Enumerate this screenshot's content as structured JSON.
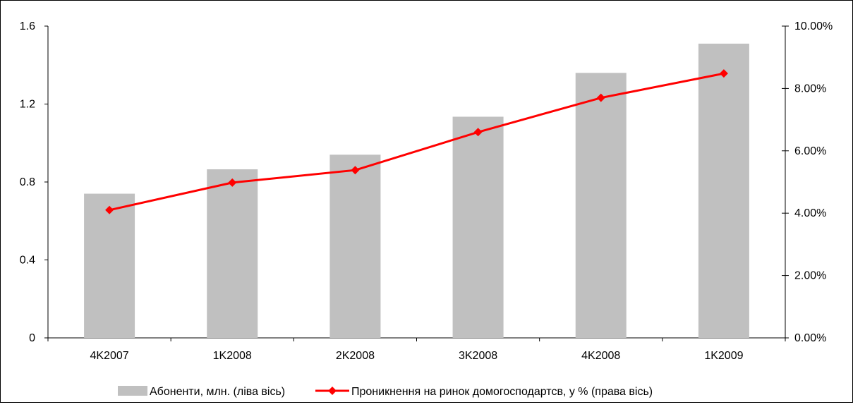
{
  "chart_data": {
    "type": "bar",
    "categories": [
      "4K2007",
      "1K2008",
      "2K2008",
      "3K2008",
      "4K2008",
      "1K2009"
    ],
    "series": [
      {
        "name": "Абоненти, млн. (ліва вісь)",
        "type": "bar",
        "axis": "left",
        "color": "#c0c0c0",
        "values": [
          0.74,
          0.865,
          0.94,
          1.135,
          1.36,
          1.51
        ]
      },
      {
        "name": "Проникнення на ринок домогосподартсв, у % (права вісь)",
        "type": "line",
        "axis": "right",
        "color": "#ff0000",
        "marker": "diamond",
        "values": [
          4.1,
          4.98,
          5.38,
          6.6,
          7.7,
          8.48
        ]
      }
    ],
    "y_left": {
      "min": 0,
      "max": 1.6,
      "ticks": [
        0,
        0.4,
        0.8,
        1.2,
        1.6
      ],
      "tick_labels": [
        "0",
        "0.4",
        "0.8",
        "1.2",
        "1.6"
      ]
    },
    "y_right": {
      "min": 0,
      "max": 10,
      "ticks": [
        0,
        2,
        4,
        6,
        8,
        10
      ],
      "tick_labels": [
        "0.00%",
        "2.00%",
        "4.00%",
        "6.00%",
        "8.00%",
        "10.00%"
      ]
    },
    "grid": false,
    "legend_position": "bottom"
  }
}
